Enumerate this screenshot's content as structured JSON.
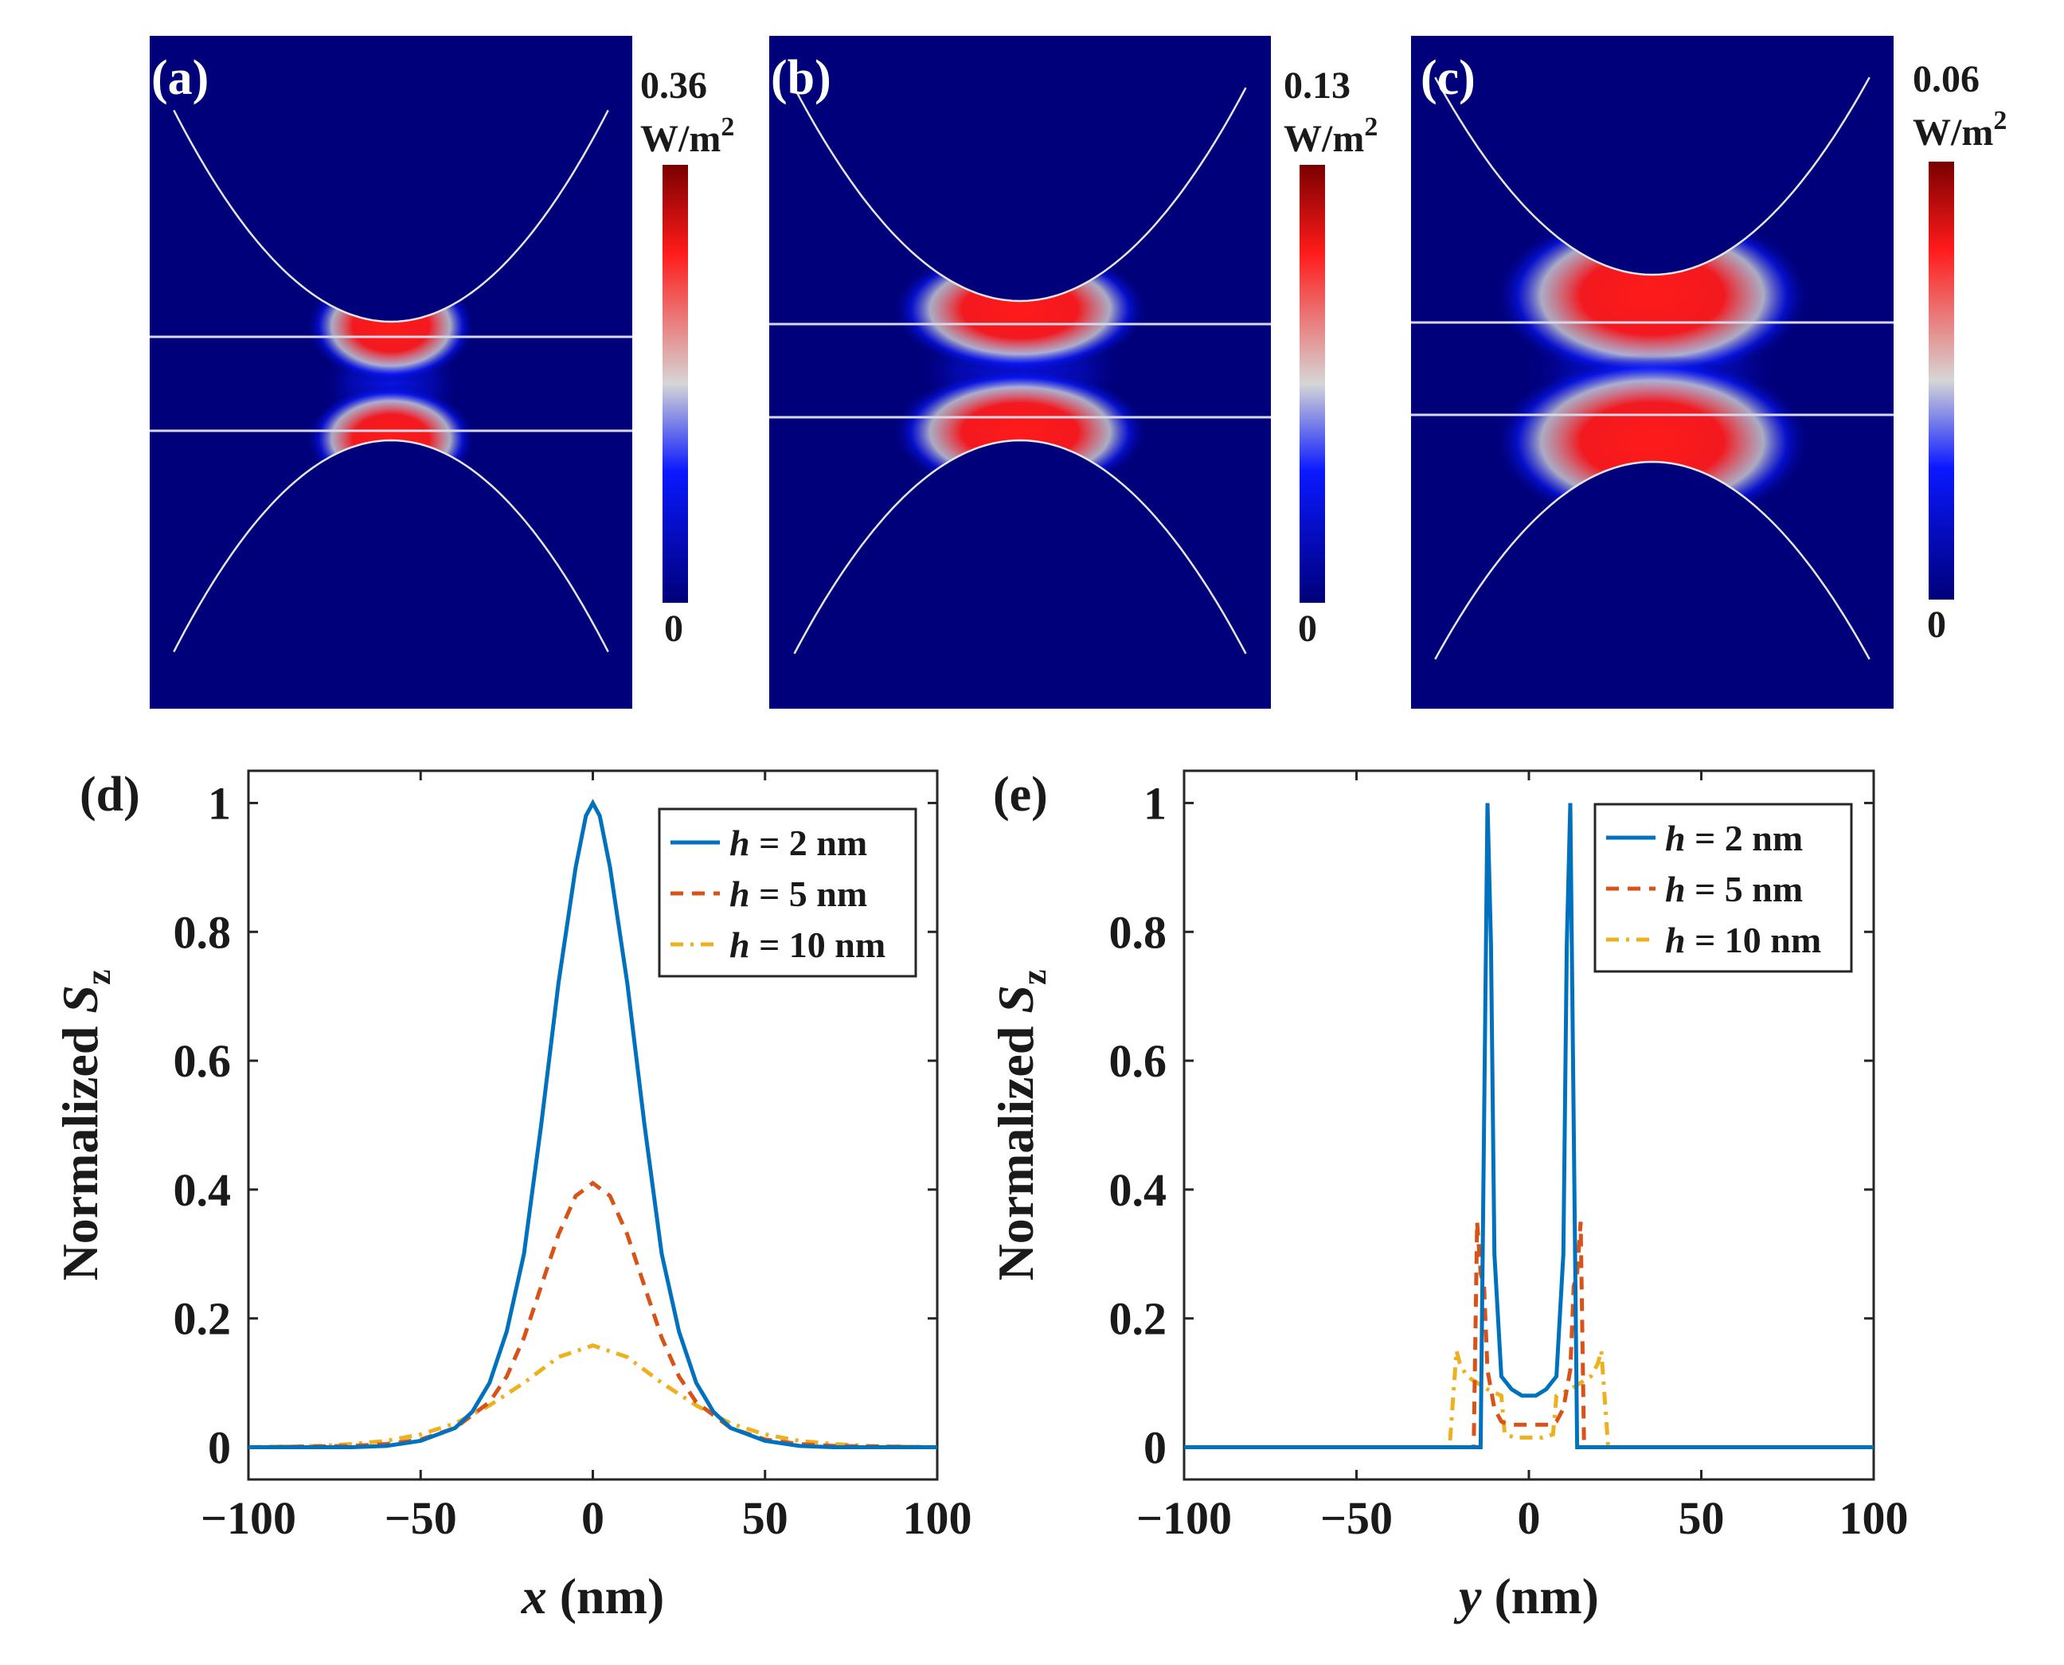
{
  "colors": {
    "field_low": "#00007a",
    "field_mid": "#0a18ff",
    "field_neutral": "#d6d6d6",
    "field_high": "#ff1a1a",
    "field_max": "#7a0000",
    "series_h2": "#0072BD",
    "series_h5": "#D95319",
    "series_h10": "#EDB120"
  },
  "maps": [
    {
      "label": "(a)",
      "cbar_max": "0.36",
      "cbar_unit": "W/m",
      "cbar_unit_sup": "2",
      "cbar_min": "0"
    },
    {
      "label": "(b)",
      "cbar_max": "0.13",
      "cbar_unit": "W/m",
      "cbar_unit_sup": "2",
      "cbar_min": "0"
    },
    {
      "label": "(c)",
      "cbar_max": "0.06",
      "cbar_unit": "W/m",
      "cbar_unit_sup": "2",
      "cbar_min": "0"
    }
  ],
  "chart_data": [
    {
      "type": "line",
      "panel": "(d)",
      "xlabel_var": "x",
      "xlabel_unit": " (nm)",
      "ylabel": "Normalized ",
      "ylabel_var": "S",
      "ylabel_sub": "z",
      "xlim": [
        -100,
        100
      ],
      "ylim": [
        -0.05,
        1.05
      ],
      "xticks": [
        -100,
        -50,
        0,
        50,
        100
      ],
      "xtick_labels": [
        "−100",
        "−50",
        "0",
        "50",
        "100"
      ],
      "yticks": [
        0,
        0.2,
        0.4,
        0.6,
        0.8,
        1
      ],
      "ytick_labels": [
        "0",
        "0.2",
        "0.4",
        "0.6",
        "0.8",
        "1"
      ],
      "legend_position": "top-right",
      "series": [
        {
          "name": "h = 2 nm",
          "var": "h",
          "rest": " = 2 nm",
          "style": "solid",
          "x": [
            -100,
            -70,
            -60,
            -50,
            -40,
            -35,
            -30,
            -25,
            -20,
            -15,
            -10,
            -5,
            -2,
            0,
            2,
            5,
            10,
            15,
            20,
            25,
            30,
            35,
            40,
            50,
            60,
            70,
            100
          ],
          "y": [
            0,
            0,
            0.002,
            0.01,
            0.03,
            0.055,
            0.1,
            0.18,
            0.3,
            0.5,
            0.72,
            0.9,
            0.98,
            1,
            0.98,
            0.9,
            0.72,
            0.5,
            0.3,
            0.18,
            0.1,
            0.055,
            0.03,
            0.01,
            0.002,
            0,
            0
          ]
        },
        {
          "name": "h = 5 nm",
          "var": "h",
          "rest": " = 5 nm",
          "style": "dashed",
          "x": [
            -100,
            -70,
            -60,
            -50,
            -40,
            -30,
            -25,
            -20,
            -15,
            -10,
            -5,
            0,
            5,
            10,
            15,
            20,
            25,
            30,
            40,
            50,
            60,
            70,
            100
          ],
          "y": [
            0,
            0.002,
            0.005,
            0.012,
            0.03,
            0.07,
            0.11,
            0.17,
            0.25,
            0.33,
            0.39,
            0.41,
            0.39,
            0.33,
            0.25,
            0.17,
            0.11,
            0.07,
            0.03,
            0.012,
            0.005,
            0.002,
            0
          ]
        },
        {
          "name": "h = 10 nm",
          "var": "h",
          "rest": " = 10 nm",
          "style": "dashdot",
          "x": [
            -100,
            -80,
            -70,
            -60,
            -50,
            -40,
            -30,
            -20,
            -10,
            0,
            10,
            20,
            30,
            40,
            50,
            60,
            70,
            80,
            100
          ],
          "y": [
            0,
            0.002,
            0.005,
            0.01,
            0.02,
            0.037,
            0.065,
            0.1,
            0.14,
            0.158,
            0.14,
            0.1,
            0.065,
            0.037,
            0.02,
            0.01,
            0.005,
            0.002,
            0
          ]
        }
      ]
    },
    {
      "type": "line",
      "panel": "(e)",
      "xlabel_var": "y",
      "xlabel_unit": " (nm)",
      "ylabel": "Normalized ",
      "ylabel_var": "S",
      "ylabel_sub": "z",
      "xlim": [
        -100,
        100
      ],
      "ylim": [
        -0.05,
        1.05
      ],
      "xticks": [
        -100,
        -50,
        0,
        50,
        100
      ],
      "xtick_labels": [
        "−100",
        "−50",
        "0",
        "50",
        "100"
      ],
      "yticks": [
        0,
        0.2,
        0.4,
        0.6,
        0.8,
        1
      ],
      "ytick_labels": [
        "0",
        "0.2",
        "0.4",
        "0.6",
        "0.8",
        "1"
      ],
      "legend_position": "top-right",
      "series": [
        {
          "name": "h = 2 nm",
          "var": "h",
          "rest": " = 2 nm",
          "style": "solid",
          "x": [
            -100,
            -14,
            -13,
            -12,
            -11,
            -10,
            -8,
            -5,
            -2,
            0,
            2,
            5,
            8,
            10,
            11,
            12,
            13,
            14,
            100
          ],
          "y": [
            0,
            0,
            0.5,
            1,
            0.78,
            0.3,
            0.11,
            0.09,
            0.08,
            0.08,
            0.08,
            0.09,
            0.11,
            0.3,
            0.78,
            1,
            0.5,
            0,
            0
          ]
        },
        {
          "name": "h = 5 nm",
          "var": "h",
          "rest": " = 5 nm",
          "style": "dashed",
          "x": [
            -100,
            -16,
            -15,
            -14,
            -13,
            -12,
            -10,
            -8,
            -6,
            -4,
            0,
            4,
            6,
            8,
            10,
            12,
            13,
            14,
            15,
            16,
            100
          ],
          "y": [
            0,
            0,
            0.35,
            0.27,
            0.25,
            0.12,
            0.06,
            0.04,
            0.035,
            0.035,
            0.035,
            0.035,
            0.035,
            0.04,
            0.06,
            0.12,
            0.25,
            0.27,
            0.35,
            0,
            0
          ]
        },
        {
          "name": "h = 10 nm",
          "var": "h",
          "rest": " = 10 nm",
          "style": "dashdot",
          "x": [
            -100,
            -23,
            -21,
            -20,
            -18,
            -15,
            -12,
            -8,
            -7,
            -4,
            0,
            4,
            7,
            8,
            12,
            15,
            18,
            20,
            21,
            23,
            100
          ],
          "y": [
            0,
            0,
            0.15,
            0.13,
            0.11,
            0.1,
            0.09,
            0.08,
            0.02,
            0.015,
            0.015,
            0.015,
            0.02,
            0.08,
            0.09,
            0.1,
            0.11,
            0.13,
            0.15,
            0,
            0
          ]
        }
      ]
    }
  ]
}
